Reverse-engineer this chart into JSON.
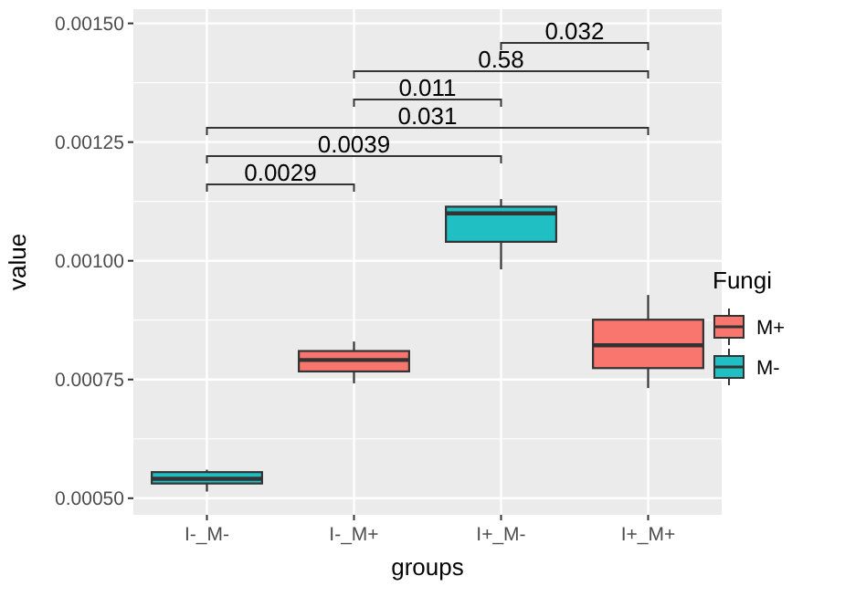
{
  "chart_data": {
    "type": "box",
    "xlabel": "groups",
    "ylabel": "value",
    "legend_title": "Fungi",
    "categories": [
      "I-_M-",
      "I-_M+",
      "I+_M-",
      "I+_M+"
    ],
    "series": [
      {
        "name": "M+",
        "color": "#f8766d",
        "boxes": [
          null,
          {
            "low": 0.000742,
            "q1": 0.000767,
            "median": 0.000791,
            "q3": 0.00081,
            "high": 0.00083
          },
          null,
          {
            "low": 0.000732,
            "q1": 0.000774,
            "median": 0.000822,
            "q3": 0.000876,
            "high": 0.000928
          }
        ]
      },
      {
        "name": "M-",
        "color": "#1fbfc3",
        "boxes": [
          {
            "low": 0.000514,
            "q1": 0.000531,
            "median": 0.000541,
            "q3": 0.000555,
            "high": 0.00056
          },
          null,
          {
            "low": 0.000982,
            "q1": 0.00104,
            "median": 0.0011,
            "q3": 0.001114,
            "high": 0.00113
          },
          null
        ]
      }
    ],
    "ylim": [
      0.000465,
      0.00153
    ],
    "yticks": [
      {
        "value": 0.0005,
        "label": "0.00050"
      },
      {
        "value": 0.00075,
        "label": "0.00075"
      },
      {
        "value": 0.001,
        "label": "0.00100"
      },
      {
        "value": 0.00125,
        "label": "0.00125"
      },
      {
        "value": 0.0015,
        "label": "0.00150"
      }
    ],
    "grid": true,
    "legend": "right",
    "annotations": [
      "0.0029",
      "0.0039",
      "0.031",
      "0.011",
      "0.58",
      "0.032"
    ]
  }
}
